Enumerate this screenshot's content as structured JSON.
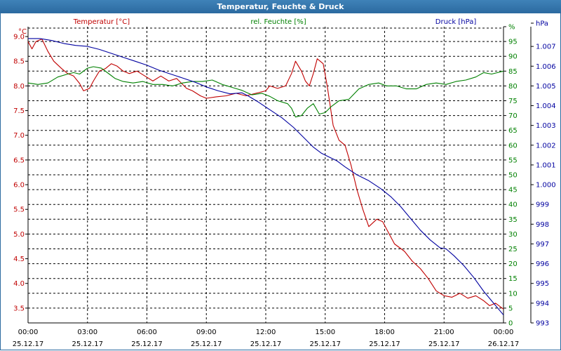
{
  "window": {
    "title": "Temperatur, Feuchte & Druck"
  },
  "colors": {
    "temperature": "#c00000",
    "humidity": "#008000",
    "pressure": "#0000a0",
    "grid": "#000000",
    "title_bar": "#2c6aa0"
  },
  "chart_data": {
    "type": "line",
    "title": "Temperatur, Feuchte & Druck",
    "grid": true,
    "axes": {
      "temperature": {
        "label": "Temperatur [°C]",
        "unit": "°C",
        "range": [
          3.2,
          9.2
        ],
        "ticks": [
          "9.0",
          "8.5",
          "8.0",
          "7.5",
          "7.0",
          "6.5",
          "6.0",
          "5.5",
          "5.0",
          "4.5",
          "4.0",
          "3.5"
        ]
      },
      "humidity": {
        "label": "rel. Feuchte [%]",
        "unit": "%",
        "range": [
          0,
          100
        ],
        "ticks": [
          "0",
          "5",
          "10",
          "15",
          "20",
          "25",
          "30",
          "35",
          "40",
          "45",
          "50",
          "55",
          "60",
          "65",
          "70",
          "75",
          "80",
          "85",
          "90",
          "95",
          "%"
        ]
      },
      "pressure": {
        "label": "Druck [hPa]",
        "unit": "hPa",
        "range": [
          993,
          1008
        ],
        "ticks": [
          "993",
          "994",
          "995",
          "996",
          "997",
          "998",
          "999",
          "1.000",
          "1.001",
          "1.002",
          "1.003",
          "1.004",
          "1.005",
          "1.006",
          "1.007",
          "hPa"
        ]
      }
    },
    "x_ticks": [
      {
        "time": "00:00",
        "date": "25.12.17"
      },
      {
        "time": "03:00",
        "date": "25.12.17"
      },
      {
        "time": "06:00",
        "date": "25.12.17"
      },
      {
        "time": "09:00",
        "date": "25.12.17"
      },
      {
        "time": "12:00",
        "date": "25.12.17"
      },
      {
        "time": "15:00",
        "date": "25.12.17"
      },
      {
        "time": "18:00",
        "date": "25.12.17"
      },
      {
        "time": "21:00",
        "date": "25.12.17"
      },
      {
        "time": "00:00",
        "date": "26.12.17"
      }
    ],
    "x_range_hours": [
      0,
      24
    ],
    "series": [
      {
        "name": "Temperatur [°C]",
        "axis": "temperature",
        "color": "#c00000",
        "points": [
          [
            0,
            8.9
          ],
          [
            0.2,
            8.75
          ],
          [
            0.4,
            8.9
          ],
          [
            0.7,
            8.95
          ],
          [
            1,
            8.7
          ],
          [
            1.3,
            8.5
          ],
          [
            1.7,
            8.35
          ],
          [
            2,
            8.25
          ],
          [
            2.3,
            8.2
          ],
          [
            2.6,
            8.05
          ],
          [
            2.8,
            7.9
          ],
          [
            3.1,
            7.95
          ],
          [
            3.3,
            8.1
          ],
          [
            3.6,
            8.3
          ],
          [
            3.9,
            8.35
          ],
          [
            4.2,
            8.45
          ],
          [
            4.5,
            8.4
          ],
          [
            4.8,
            8.3
          ],
          [
            5.1,
            8.25
          ],
          [
            5.5,
            8.3
          ],
          [
            5.9,
            8.2
          ],
          [
            6.3,
            8.1
          ],
          [
            6.7,
            8.2
          ],
          [
            7.1,
            8.1
          ],
          [
            7.5,
            8.15
          ],
          [
            8,
            7.95
          ],
          [
            8.3,
            7.9
          ],
          [
            8.7,
            7.8
          ],
          [
            9,
            7.75
          ],
          [
            9.5,
            7.78
          ],
          [
            10,
            7.8
          ],
          [
            10.5,
            7.85
          ],
          [
            11,
            7.8
          ],
          [
            11.5,
            7.85
          ],
          [
            12,
            7.9
          ],
          [
            12.2,
            8.0
          ],
          [
            12.6,
            7.95
          ],
          [
            13,
            8.0
          ],
          [
            13.3,
            8.25
          ],
          [
            13.5,
            8.5
          ],
          [
            13.8,
            8.3
          ],
          [
            14,
            8.1
          ],
          [
            14.2,
            8.0
          ],
          [
            14.4,
            8.25
          ],
          [
            14.6,
            8.55
          ],
          [
            14.9,
            8.45
          ],
          [
            15.1,
            8.0
          ],
          [
            15.4,
            7.2
          ],
          [
            15.7,
            6.9
          ],
          [
            16,
            6.8
          ],
          [
            16.3,
            6.4
          ],
          [
            16.6,
            5.9
          ],
          [
            16.9,
            5.5
          ],
          [
            17.2,
            5.15
          ],
          [
            17.6,
            5.3
          ],
          [
            17.9,
            5.25
          ],
          [
            18.1,
            5.1
          ],
          [
            18.5,
            4.8
          ],
          [
            19,
            4.65
          ],
          [
            19.4,
            4.45
          ],
          [
            19.8,
            4.3
          ],
          [
            20.2,
            4.1
          ],
          [
            20.6,
            3.85
          ],
          [
            21,
            3.75
          ],
          [
            21.4,
            3.72
          ],
          [
            21.8,
            3.8
          ],
          [
            22.2,
            3.7
          ],
          [
            22.6,
            3.75
          ],
          [
            23,
            3.65
          ],
          [
            23.3,
            3.55
          ],
          [
            23.6,
            3.6
          ],
          [
            24,
            3.48
          ]
        ]
      },
      {
        "name": "rel. Feuchte [%]",
        "axis": "humidity",
        "color": "#008000",
        "points": [
          [
            0,
            81
          ],
          [
            0.5,
            80.5
          ],
          [
            1,
            81
          ],
          [
            1.5,
            83
          ],
          [
            2,
            84
          ],
          [
            2.3,
            84.5
          ],
          [
            2.6,
            84
          ],
          [
            3,
            86
          ],
          [
            3.3,
            86.5
          ],
          [
            3.7,
            86
          ],
          [
            4.1,
            84
          ],
          [
            4.4,
            82.5
          ],
          [
            4.8,
            81.5
          ],
          [
            5.3,
            81
          ],
          [
            5.8,
            81.5
          ],
          [
            6.3,
            80.5
          ],
          [
            6.8,
            80.5
          ],
          [
            7.3,
            80
          ],
          [
            7.8,
            81
          ],
          [
            8.3,
            81.5
          ],
          [
            8.8,
            81.5
          ],
          [
            9.3,
            82
          ],
          [
            9.8,
            80.5
          ],
          [
            10.3,
            79.5
          ],
          [
            10.8,
            78.5
          ],
          [
            11.3,
            77
          ],
          [
            11.8,
            77.5
          ],
          [
            12.2,
            76.5
          ],
          [
            12.6,
            75
          ],
          [
            13.1,
            74
          ],
          [
            13.3,
            72.5
          ],
          [
            13.5,
            69.5
          ],
          [
            13.8,
            70
          ],
          [
            14.1,
            72.5
          ],
          [
            14.4,
            74
          ],
          [
            14.7,
            70.5
          ],
          [
            15,
            71
          ],
          [
            15.3,
            73
          ],
          [
            15.7,
            75
          ],
          [
            16.2,
            75.5
          ],
          [
            16.7,
            79
          ],
          [
            17.2,
            80.5
          ],
          [
            17.7,
            81
          ],
          [
            18.1,
            80
          ],
          [
            18.6,
            80
          ],
          [
            19.1,
            79
          ],
          [
            19.6,
            79
          ],
          [
            20.1,
            80.5
          ],
          [
            20.6,
            81
          ],
          [
            21.1,
            80.5
          ],
          [
            21.6,
            81.5
          ],
          [
            22.1,
            82
          ],
          [
            22.6,
            83
          ],
          [
            23,
            84.5
          ],
          [
            23.4,
            84
          ],
          [
            24,
            85
          ]
        ]
      },
      {
        "name": "Druck [hPa]",
        "axis": "pressure",
        "color": "#0000a0",
        "points": [
          [
            0,
            1007.4
          ],
          [
            0.6,
            1007.4
          ],
          [
            1.2,
            1007.3
          ],
          [
            1.8,
            1007.15
          ],
          [
            2.4,
            1007.05
          ],
          [
            3,
            1007.0
          ],
          [
            3.6,
            1006.85
          ],
          [
            4.2,
            1006.65
          ],
          [
            4.8,
            1006.45
          ],
          [
            5.4,
            1006.25
          ],
          [
            6,
            1006.05
          ],
          [
            6.6,
            1005.8
          ],
          [
            7.2,
            1005.6
          ],
          [
            7.8,
            1005.4
          ],
          [
            8.4,
            1005.2
          ],
          [
            9,
            1004.95
          ],
          [
            9.6,
            1004.75
          ],
          [
            10.2,
            1004.6
          ],
          [
            10.8,
            1004.65
          ],
          [
            11.1,
            1004.5
          ],
          [
            11.6,
            1004.2
          ],
          [
            12.2,
            1003.8
          ],
          [
            12.8,
            1003.4
          ],
          [
            13.4,
            1002.9
          ],
          [
            13.9,
            1002.4
          ],
          [
            14.4,
            1001.9
          ],
          [
            14.8,
            1001.6
          ],
          [
            15.2,
            1001.4
          ],
          [
            15.6,
            1001.2
          ],
          [
            16,
            1000.9
          ],
          [
            16.6,
            1000.5
          ],
          [
            17.2,
            1000.2
          ],
          [
            17.8,
            999.8
          ],
          [
            18.3,
            999.4
          ],
          [
            18.8,
            998.9
          ],
          [
            19.3,
            998.3
          ],
          [
            19.8,
            997.7
          ],
          [
            20.3,
            997.2
          ],
          [
            20.8,
            996.8
          ],
          [
            21.1,
            996.75
          ],
          [
            21.5,
            996.4
          ],
          [
            22,
            995.9
          ],
          [
            22.5,
            995.3
          ],
          [
            23,
            994.6
          ],
          [
            23.5,
            994.0
          ],
          [
            24,
            993.4
          ]
        ]
      }
    ]
  }
}
